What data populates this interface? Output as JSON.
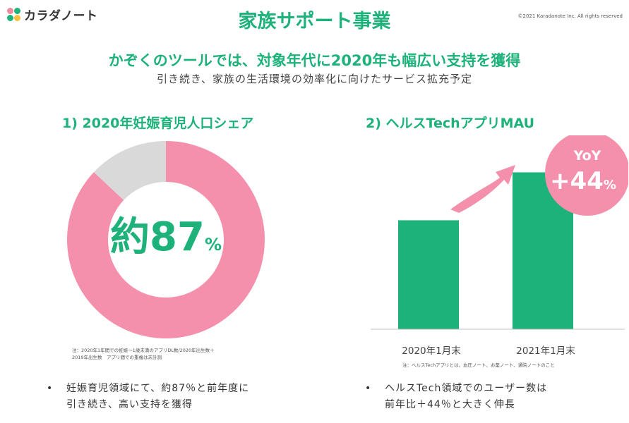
{
  "header": {
    "brand": "カラダノート",
    "title": "家族サポート事業",
    "copyright": "©2021 Karadanote Inc. All rights reserved"
  },
  "headline": "かぞくのツールでは、対象年代に2020年も幅広い支持を獲得",
  "subheadline": "引き続き、家族の生活環境の効率化に向けたサービス拡充予定",
  "colors": {
    "brand_green": "#1db27a",
    "pink": "#f590ac",
    "grey": "#d9d9d9"
  },
  "left": {
    "title": "1) 2020年妊娠育児人口シェア",
    "center_label": "約87",
    "center_unit": "%",
    "note_line1": "注：2020年1年間での妊娠～1歳未満のアプリDL数/2020年出生数＋",
    "note_line2": "2019年出生数　アプリ間での重複は未計測",
    "bullet_line1": "妊娠育児領域にて、約87％と前年度に",
    "bullet_line2": "引き続き、高い支持を獲得"
  },
  "right": {
    "title": "2) ヘルスTechアプリMAU",
    "badge_top": "YoY",
    "badge_value": "+44",
    "badge_unit": "%",
    "note": "注：ヘルスTechアプリとは、血圧ノート、お薬ノート、通院ノートのこと",
    "bullet_line1": "ヘルスTech領域でのユーザー数は",
    "bullet_line2": "前年比＋44％と大きく伸長"
  },
  "chart_data": [
    {
      "type": "pie",
      "title": "1) 2020年妊娠育児人口シェア",
      "slices": [
        {
          "label": "",
          "value": 87,
          "color": "#f590ac"
        },
        {
          "label": "",
          "value": 13,
          "color": "#d9d9d9"
        }
      ]
    },
    {
      "type": "bar",
      "title": "2) ヘルスTechアプリMAU",
      "categories": [
        "2020年1月末",
        "2021年1月末"
      ],
      "values": [
        100,
        144
      ],
      "ylim": [
        0,
        165
      ],
      "color": "#1db27a"
    }
  ]
}
